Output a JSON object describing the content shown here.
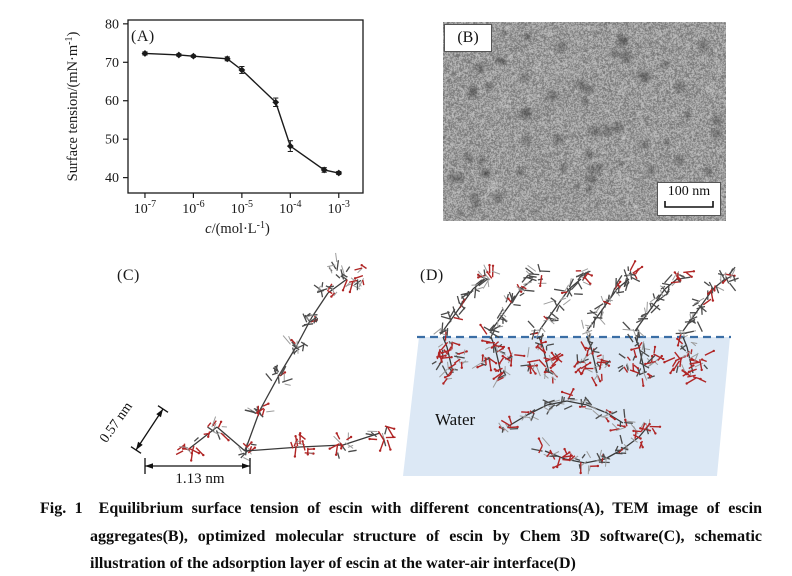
{
  "figure": {
    "caption": {
      "fig_label": "Fig. 1",
      "line1": "Equilibrium surface tension of escin with different concentrations(A), TEM image of escin",
      "line2": "aggregates(B), optimized molecular structure of escin by Chem 3D software(C), schematic",
      "line3": "illustration of the adsorption layer of escin at the water-air interface(D)"
    }
  },
  "panel_a": {
    "label": "(A)"
  },
  "chart_data": {
    "type": "line",
    "x": [
      1e-07,
      5e-07,
      1e-06,
      5e-06,
      1e-05,
      5e-05,
      0.0001,
      0.0005,
      0.001
    ],
    "y": [
      72.3,
      71.9,
      71.6,
      70.9,
      68.0,
      59.6,
      48.2,
      42.0,
      41.2
    ],
    "yerr": [
      0.4,
      0.3,
      0.3,
      0.5,
      0.9,
      1.1,
      1.4,
      0.6,
      0.4
    ],
    "title": "",
    "xlabel": {
      "italic": "c",
      "main": "/(mol·L",
      "sup": "-1",
      "end": ")"
    },
    "ylabel": {
      "main": "Surface tension/(mN·m",
      "sup": "-1",
      "end": ")"
    },
    "ylim": [
      36,
      81
    ],
    "yticks": [
      40,
      50,
      60,
      70,
      80
    ],
    "xtick_exponents": [
      -7,
      -6,
      -5,
      -4,
      -3
    ],
    "xlim_exp": [
      -7.35,
      -2.5
    ],
    "grid": false,
    "legend": null,
    "line_color": "#1a1a1a",
    "marker": "diamond"
  },
  "panel_b": {
    "label": "(B)",
    "scale_bar": "100 nm"
  },
  "panel_c": {
    "label": "(C)",
    "dim_diagonal": "0.57 nm",
    "dim_horizontal": "1.13 nm"
  },
  "panel_d": {
    "label": "(D)",
    "water_label": "Water"
  },
  "colors": {
    "axis": "#1a1a1a",
    "water_fill": "#dce8f5",
    "interface_line": "#3a6ea5",
    "oxygen": "#b02525",
    "carbon": "#4a4a4a",
    "carbon_dark": "#3a3a3a",
    "hydrogen": "#9c9c9c",
    "tem_label_bg": "#ffffff"
  }
}
